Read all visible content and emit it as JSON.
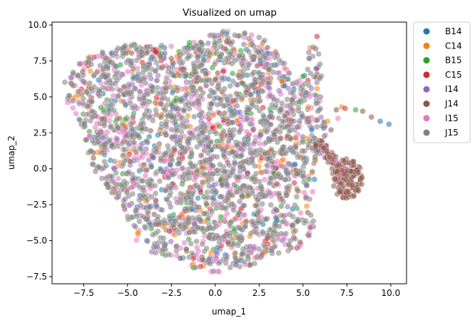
{
  "chart_data": {
    "type": "scatter",
    "title": "Visualized on umap",
    "xlabel": "umap_1",
    "ylabel": "umap_2",
    "xlim": [
      -9.3,
      10.9
    ],
    "ylim": [
      -8.0,
      10.2
    ],
    "xticks": [
      -7.5,
      -5.0,
      -2.5,
      0.0,
      2.5,
      5.0,
      7.5,
      10.0
    ],
    "yticks": [
      -7.5,
      -5.0,
      -2.5,
      0.0,
      2.5,
      5.0,
      7.5,
      10.0
    ],
    "xtick_labels": [
      "−7.5",
      "−5.0",
      "−2.5",
      "0.0",
      "2.5",
      "5.0",
      "7.5",
      "10.0"
    ],
    "ytick_labels": [
      "−7.5",
      "−5.0",
      "−2.5",
      "0.0",
      "2.5",
      "5.0",
      "7.5",
      "10.0"
    ],
    "grid": false,
    "legend_position": "outside-right",
    "point_alpha": 0.55,
    "series": [
      {
        "name": "B14",
        "color": "#1f77b4"
      },
      {
        "name": "C14",
        "color": "#ff7f0e"
      },
      {
        "name": "B15",
        "color": "#2ca02c"
      },
      {
        "name": "C15",
        "color": "#d62728"
      },
      {
        "name": "I14",
        "color": "#9467bd"
      },
      {
        "name": "J14",
        "color": "#8c564b"
      },
      {
        "name": "I15",
        "color": "#e377c2"
      },
      {
        "name": "J15",
        "color": "#7f7f7f"
      }
    ],
    "main_cluster_outline": [
      [
        -8.6,
        6.2
      ],
      [
        -7.8,
        7.6
      ],
      [
        -6.2,
        8.2
      ],
      [
        -5.0,
        8.8
      ],
      [
        -3.5,
        8.5
      ],
      [
        -2.0,
        8.8
      ],
      [
        -0.5,
        9.3
      ],
      [
        0.5,
        9.6
      ],
      [
        1.8,
        9.5
      ],
      [
        2.8,
        9.0
      ],
      [
        3.6,
        8.0
      ],
      [
        4.3,
        7.0
      ],
      [
        4.5,
        6.2
      ],
      [
        5.0,
        7.2
      ],
      [
        5.4,
        8.6
      ],
      [
        5.6,
        9.1
      ],
      [
        6.0,
        7.8
      ],
      [
        6.1,
        6.3
      ],
      [
        6.0,
        4.8
      ],
      [
        6.2,
        3.4
      ],
      [
        6.6,
        2.3
      ],
      [
        6.3,
        1.2
      ],
      [
        5.6,
        0.2
      ],
      [
        5.7,
        -1.2
      ],
      [
        5.4,
        -2.6
      ],
      [
        5.7,
        -4.0
      ],
      [
        5.2,
        -5.2
      ],
      [
        4.0,
        -5.9
      ],
      [
        2.5,
        -6.6
      ],
      [
        1.0,
        -6.9
      ],
      [
        0.0,
        -7.3
      ],
      [
        -1.5,
        -6.8
      ],
      [
        -2.8,
        -6.3
      ],
      [
        -3.8,
        -5.7
      ],
      [
        -4.6,
        -5.0
      ],
      [
        -4.9,
        -3.8
      ],
      [
        -5.3,
        -2.6
      ],
      [
        -6.2,
        -1.2
      ],
      [
        -6.9,
        -0.2
      ],
      [
        -7.3,
        1.2
      ],
      [
        -7.5,
        2.7
      ],
      [
        -8.0,
        3.6
      ],
      [
        -8.6,
        4.8
      ]
    ],
    "outlier_points": [
      {
        "x": 9.9,
        "y": 3.1,
        "series": "B14"
      },
      {
        "x": 9.4,
        "y": 3.3,
        "series": "B14"
      },
      {
        "x": 8.9,
        "y": 3.6,
        "series": "J14"
      },
      {
        "x": 8.4,
        "y": 4.0,
        "series": "J14"
      },
      {
        "x": 8.0,
        "y": 4.1,
        "series": "B15"
      },
      {
        "x": 7.2,
        "y": 4.3,
        "series": "C14"
      },
      {
        "x": 6.9,
        "y": 4.1,
        "series": "J14"
      },
      {
        "x": 7.0,
        "y": 3.5,
        "series": "I15"
      },
      {
        "x": 6.6,
        "y": 2.7,
        "series": "J14"
      },
      {
        "x": 7.4,
        "y": 4.2,
        "series": "C15"
      },
      {
        "x": 6.4,
        "y": 3.3,
        "series": "C14"
      },
      {
        "x": 5.3,
        "y": 4.3,
        "series": "C14"
      },
      {
        "x": 4.3,
        "y": 4.2,
        "series": "I14"
      },
      {
        "x": 5.8,
        "y": 9.2,
        "series": "C15"
      },
      {
        "x": 3.8,
        "y": 6.1,
        "series": "C14"
      },
      {
        "x": 5.5,
        "y": 2.7,
        "series": "B14"
      }
    ],
    "j14_tail_center": [
      7.5,
      -0.7
    ],
    "description_of_density": "dense overlapping points across all series, J15 grey dominant on top"
  }
}
